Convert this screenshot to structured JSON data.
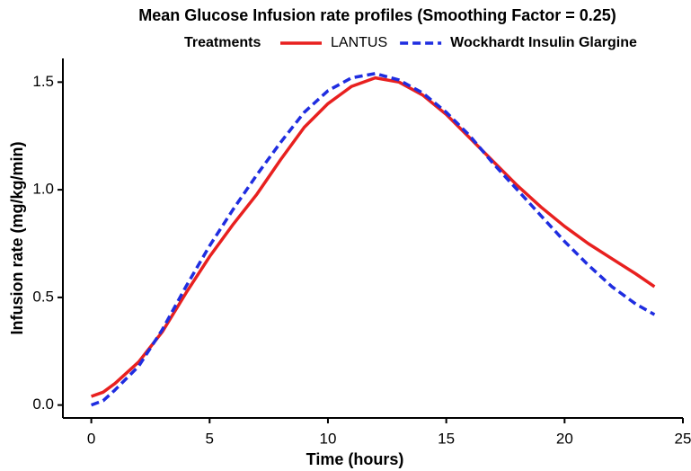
{
  "chart_data": {
    "type": "line",
    "title": "Mean Glucose Infusion rate profiles (Smoothing Factor = 0.25)",
    "legend_title": "Treatments",
    "legend_position": "top",
    "x_label": "Time (hours)",
    "y_label": "Infusion rate (mg/kg/min)",
    "x": [
      0,
      0.5,
      1,
      2,
      3,
      4,
      5,
      6,
      7,
      8,
      9,
      10,
      11,
      12,
      13,
      14,
      15,
      16,
      17,
      18,
      19,
      20,
      21,
      22,
      23,
      23.8
    ],
    "series": [
      {
        "name": "LANTUS",
        "color": "#e8201f",
        "dash": false,
        "values": [
          0.04,
          0.06,
          0.1,
          0.2,
          0.34,
          0.52,
          0.69,
          0.84,
          0.98,
          1.14,
          1.29,
          1.4,
          1.48,
          1.52,
          1.5,
          1.44,
          1.35,
          1.24,
          1.13,
          1.02,
          0.92,
          0.83,
          0.75,
          0.68,
          0.61,
          0.55
        ]
      },
      {
        "name": "Wockhardt Insulin Glargine",
        "color": "#1f2de0",
        "dash": true,
        "values": [
          0.0,
          0.02,
          0.07,
          0.18,
          0.35,
          0.55,
          0.74,
          0.91,
          1.07,
          1.22,
          1.36,
          1.46,
          1.52,
          1.54,
          1.51,
          1.45,
          1.36,
          1.25,
          1.12,
          1.0,
          0.88,
          0.76,
          0.65,
          0.55,
          0.47,
          0.42
        ]
      }
    ],
    "xlim": [
      -1.2,
      25
    ],
    "ylim": [
      -0.06,
      1.61
    ],
    "xticks": [
      0,
      5,
      10,
      15,
      20,
      25
    ],
    "yticks": [
      {
        "value": 0,
        "label": "0.0"
      },
      {
        "value": 0.5,
        "label": "0.5"
      },
      {
        "value": 1,
        "label": "1.0"
      },
      {
        "value": 1.5,
        "label": "1.5"
      }
    ],
    "grid": false
  }
}
